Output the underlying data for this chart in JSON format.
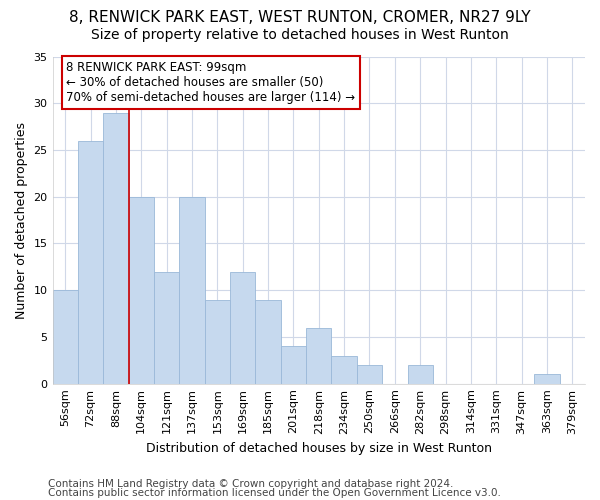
{
  "title1": "8, RENWICK PARK EAST, WEST RUNTON, CROMER, NR27 9LY",
  "title2": "Size of property relative to detached houses in West Runton",
  "xlabel": "Distribution of detached houses by size in West Runton",
  "ylabel": "Number of detached properties",
  "categories": [
    "56sqm",
    "72sqm",
    "88sqm",
    "104sqm",
    "121sqm",
    "137sqm",
    "153sqm",
    "169sqm",
    "185sqm",
    "201sqm",
    "218sqm",
    "234sqm",
    "250sqm",
    "266sqm",
    "282sqm",
    "298sqm",
    "314sqm",
    "331sqm",
    "347sqm",
    "363sqm",
    "379sqm"
  ],
  "values": [
    10,
    26,
    29,
    20,
    12,
    20,
    9,
    12,
    9,
    4,
    6,
    3,
    2,
    0,
    2,
    0,
    0,
    0,
    0,
    1,
    0
  ],
  "bar_color": "#c6d9ee",
  "bar_edge_color": "#9ab8d8",
  "red_line_x": 2.5,
  "annotation_text": "8 RENWICK PARK EAST: 99sqm\n← 30% of detached houses are smaller (50)\n70% of semi-detached houses are larger (114) →",
  "annotation_box_color": "#ffffff",
  "annotation_box_edge": "#cc0000",
  "ylim": [
    0,
    35
  ],
  "yticks": [
    0,
    5,
    10,
    15,
    20,
    25,
    30,
    35
  ],
  "footnote1": "Contains HM Land Registry data © Crown copyright and database right 2024.",
  "footnote2": "Contains public sector information licensed under the Open Government Licence v3.0.",
  "fig_bg_color": "#ffffff",
  "plot_bg_color": "#ffffff",
  "grid_color": "#d0d8e8",
  "title1_fontsize": 11,
  "title2_fontsize": 10,
  "xlabel_fontsize": 9,
  "ylabel_fontsize": 9,
  "tick_fontsize": 8,
  "annotation_fontsize": 8.5,
  "footnote_fontsize": 7.5
}
